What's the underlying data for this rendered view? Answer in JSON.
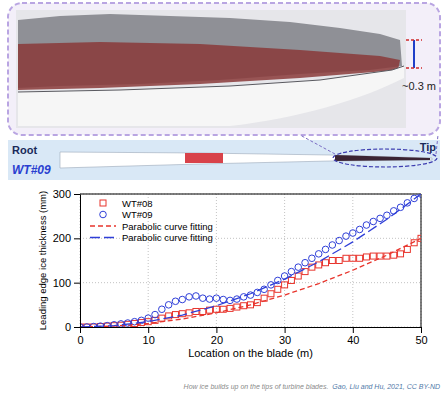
{
  "chart_data": {
    "type": "scatter",
    "x_label": "Location on the blade (m)",
    "y_label": "Leading edge ice thickness (mm)",
    "xlim": [
      0,
      50
    ],
    "ylim": [
      0,
      300
    ],
    "xticks": [
      0,
      10,
      20,
      30,
      40,
      50
    ],
    "yticks": [
      0,
      100,
      200,
      300
    ],
    "grid": true,
    "legend": "upper left",
    "series": [
      {
        "name": "WT#08",
        "color": "#e8342c",
        "type": "scatter",
        "marker": "square",
        "x": [
          0,
          1,
          2,
          3,
          4,
          5,
          6,
          7,
          8,
          9,
          10,
          11,
          12,
          13,
          14,
          15,
          16,
          17,
          18,
          19,
          20,
          21,
          22,
          23,
          24,
          25,
          26,
          27,
          28,
          29,
          30,
          31,
          32,
          33,
          34,
          35,
          36,
          37,
          38,
          39,
          40,
          41,
          42,
          43,
          44,
          45,
          46,
          47,
          48,
          49,
          50
        ],
        "values": [
          0,
          0,
          0,
          1,
          2,
          3,
          4,
          6,
          8,
          10,
          12,
          15,
          20,
          25,
          28,
          30,
          32,
          35,
          35,
          38,
          40,
          40,
          42,
          45,
          48,
          50,
          55,
          65,
          75,
          85,
          95,
          105,
          115,
          125,
          135,
          140,
          145,
          150,
          150,
          155,
          155,
          155,
          158,
          160,
          160,
          160,
          162,
          165,
          175,
          190,
          200
        ]
      },
      {
        "name": "WT#09",
        "color": "#2f3fd8",
        "type": "scatter",
        "marker": "circle",
        "x": [
          0,
          1,
          2,
          3,
          4,
          5,
          6,
          7,
          8,
          9,
          10,
          11,
          12,
          13,
          14,
          15,
          16,
          17,
          18,
          19,
          20,
          21,
          22,
          23,
          24,
          25,
          26,
          27,
          28,
          29,
          30,
          31,
          32,
          33,
          34,
          35,
          36,
          37,
          38,
          39,
          40,
          41,
          42,
          43,
          44,
          45,
          46,
          47,
          48,
          49,
          50
        ],
        "values": [
          0,
          0,
          1,
          2,
          3,
          5,
          7,
          9,
          12,
          15,
          20,
          28,
          40,
          50,
          58,
          62,
          68,
          70,
          65,
          63,
          65,
          62,
          60,
          63,
          68,
          72,
          78,
          85,
          95,
          105,
          115,
          125,
          135,
          145,
          155,
          165,
          175,
          185,
          195,
          205,
          212,
          220,
          230,
          238,
          245,
          252,
          262,
          270,
          280,
          290,
          300
        ]
      },
      {
        "name": "Parabolic curve fitting",
        "color": "#e8342c",
        "type": "line",
        "line_style": "dashed",
        "x": [
          0,
          5,
          10,
          15,
          20,
          25,
          30,
          35,
          40,
          45,
          50
        ],
        "values": [
          0,
          2,
          8,
          18,
          32,
          50,
          72,
          98,
          128,
          162,
          200
        ]
      },
      {
        "name": "Parabolic curve fitting",
        "color": "#2f3fd8",
        "type": "line",
        "line_style": "longdash",
        "x": [
          0,
          5,
          10,
          15,
          20,
          25,
          30,
          35,
          40,
          45,
          50
        ],
        "values": [
          0,
          3,
          12,
          27,
          48,
          75,
          108,
          147,
          192,
          243,
          300
        ]
      }
    ]
  },
  "figure": {
    "photo_label": "~0.3 m",
    "root_label": "Root",
    "turbine_label": "WT#09",
    "tip_label": "Tip",
    "caption": "How ice builds up on the tips of turbine blades.",
    "source": "Gao, Liu and Hu, 2021, CC BY-ND"
  }
}
